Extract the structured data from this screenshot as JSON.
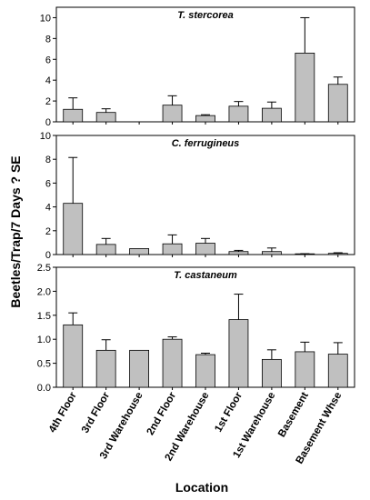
{
  "chart_data": {
    "type": "bar",
    "ylabel": "Beetles/Trap/7 Days ? SE",
    "xlabel": "Location",
    "categories": [
      "4th Floor",
      "3rd Floor",
      "3rd Warehouse",
      "2nd Floor",
      "2nd Warehouse",
      "1st Floor",
      "1st Warehouse",
      "Basement",
      "Basement Whse"
    ],
    "panels": [
      {
        "title": "T. stercorea",
        "ylim": [
          0,
          11
        ],
        "yticks": [
          "0",
          "2",
          "4",
          "6",
          "8",
          "10"
        ],
        "values": [
          1.2,
          0.9,
          null,
          1.6,
          0.6,
          1.5,
          1.3,
          6.6,
          3.6
        ],
        "se": [
          1.1,
          0.35,
          null,
          0.9,
          0.08,
          0.45,
          0.6,
          3.4,
          0.7
        ]
      },
      {
        "title": "C. ferrugineus",
        "ylim": [
          0,
          10
        ],
        "yticks": [
          "0",
          "2",
          "4",
          "6",
          "8",
          "10"
        ],
        "values": [
          4.3,
          0.85,
          0.5,
          0.9,
          0.95,
          0.25,
          0.25,
          0.05,
          0.1
        ],
        "se": [
          3.85,
          0.5,
          0.0,
          0.75,
          0.4,
          0.1,
          0.3,
          0.02,
          0.05
        ]
      },
      {
        "title": "T. castaneum",
        "ylim": [
          0,
          2.5
        ],
        "yticks": [
          "0.0",
          "0.5",
          "1.0",
          "1.5",
          "2.0",
          "2.5"
        ],
        "values": [
          1.3,
          0.77,
          0.77,
          1.0,
          0.68,
          1.41,
          0.58,
          0.74,
          0.69
        ],
        "se": [
          0.25,
          0.22,
          0.0,
          0.05,
          0.03,
          0.53,
          0.2,
          0.2,
          0.24
        ]
      }
    ]
  }
}
